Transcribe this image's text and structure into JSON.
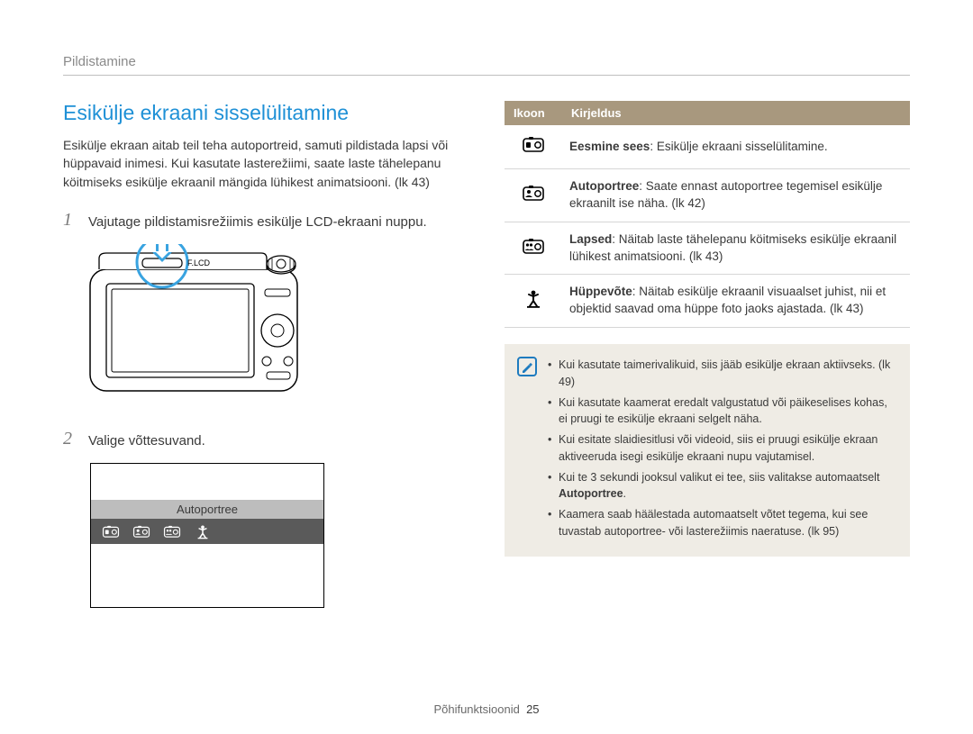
{
  "breadcrumb": "Pildistamine",
  "title": "Esikülje ekraani sisselülitamine",
  "intro": "Esikülje ekraan aitab teil teha autoportreid, samuti pildistada lapsi või hüppavaid inimesi. Kui kasutate lasterežiimi, saate laste tähelepanu köitmiseks esikülje ekraanil mängida lühikest animatsiooni. (lk 43)",
  "steps": [
    {
      "num": "1",
      "text": "Vajutage pildistamisrežiimis esikülje LCD-ekraani nuppu."
    },
    {
      "num": "2",
      "text": "Valige võttesuvand."
    }
  ],
  "camera_button_label": "F.LCD",
  "option_box": {
    "label": "Autoportree"
  },
  "table": {
    "headers": [
      "Ikoon",
      "Kirjeldus"
    ],
    "rows": [
      {
        "icon": "front-on",
        "bold": "Eesmine sees",
        "text": ": Esikülje ekraani sisselülitamine."
      },
      {
        "icon": "self-portrait",
        "bold": "Autoportree",
        "text": ": Saate ennast autoportree tegemisel esikülje ekraanilt ise näha. (lk 42)"
      },
      {
        "icon": "children",
        "bold": "Lapsed",
        "text": ": Näitab laste tähelepanu köitmiseks esikülje ekraanil lühikest animatsiooni. (lk 43)"
      },
      {
        "icon": "jump",
        "bold": "Hüppevõte",
        "text": ": Näitab esikülje ekraanil visuaalset juhist, nii et objektid saavad oma hüppe foto jaoks ajastada. (lk 43)"
      }
    ]
  },
  "notes": [
    "Kui kasutate taimerivalikuid, siis jääb esikülje ekraan aktiivseks. (lk 49)",
    "Kui kasutate kaamerat eredalt valgustatud või päikeselises kohas, ei pruugi te esikülje ekraani selgelt näha.",
    "Kui esitate slaidiesitlusi või videoid, siis ei pruugi esikülje ekraan aktiveeruda isegi esikülje ekraani nupu vajutamisel.",
    "Kui te 3 sekundi jooksul valikut ei tee, siis valitakse automaatselt <b>Autoportree</b>.",
    "Kaamera saab häälestada automaatselt võtet tegema, kui see tuvastab autoportree- või lasterežiimis naeratuse. (lk 95)"
  ],
  "footer": {
    "section": "Põhifunktsioonid",
    "page": "25"
  },
  "colors": {
    "title": "#1e90d6",
    "table_header_bg": "#a8987e",
    "note_bg": "#efece5",
    "note_border": "#1e7bbf",
    "highlight": "#39a3e0"
  }
}
